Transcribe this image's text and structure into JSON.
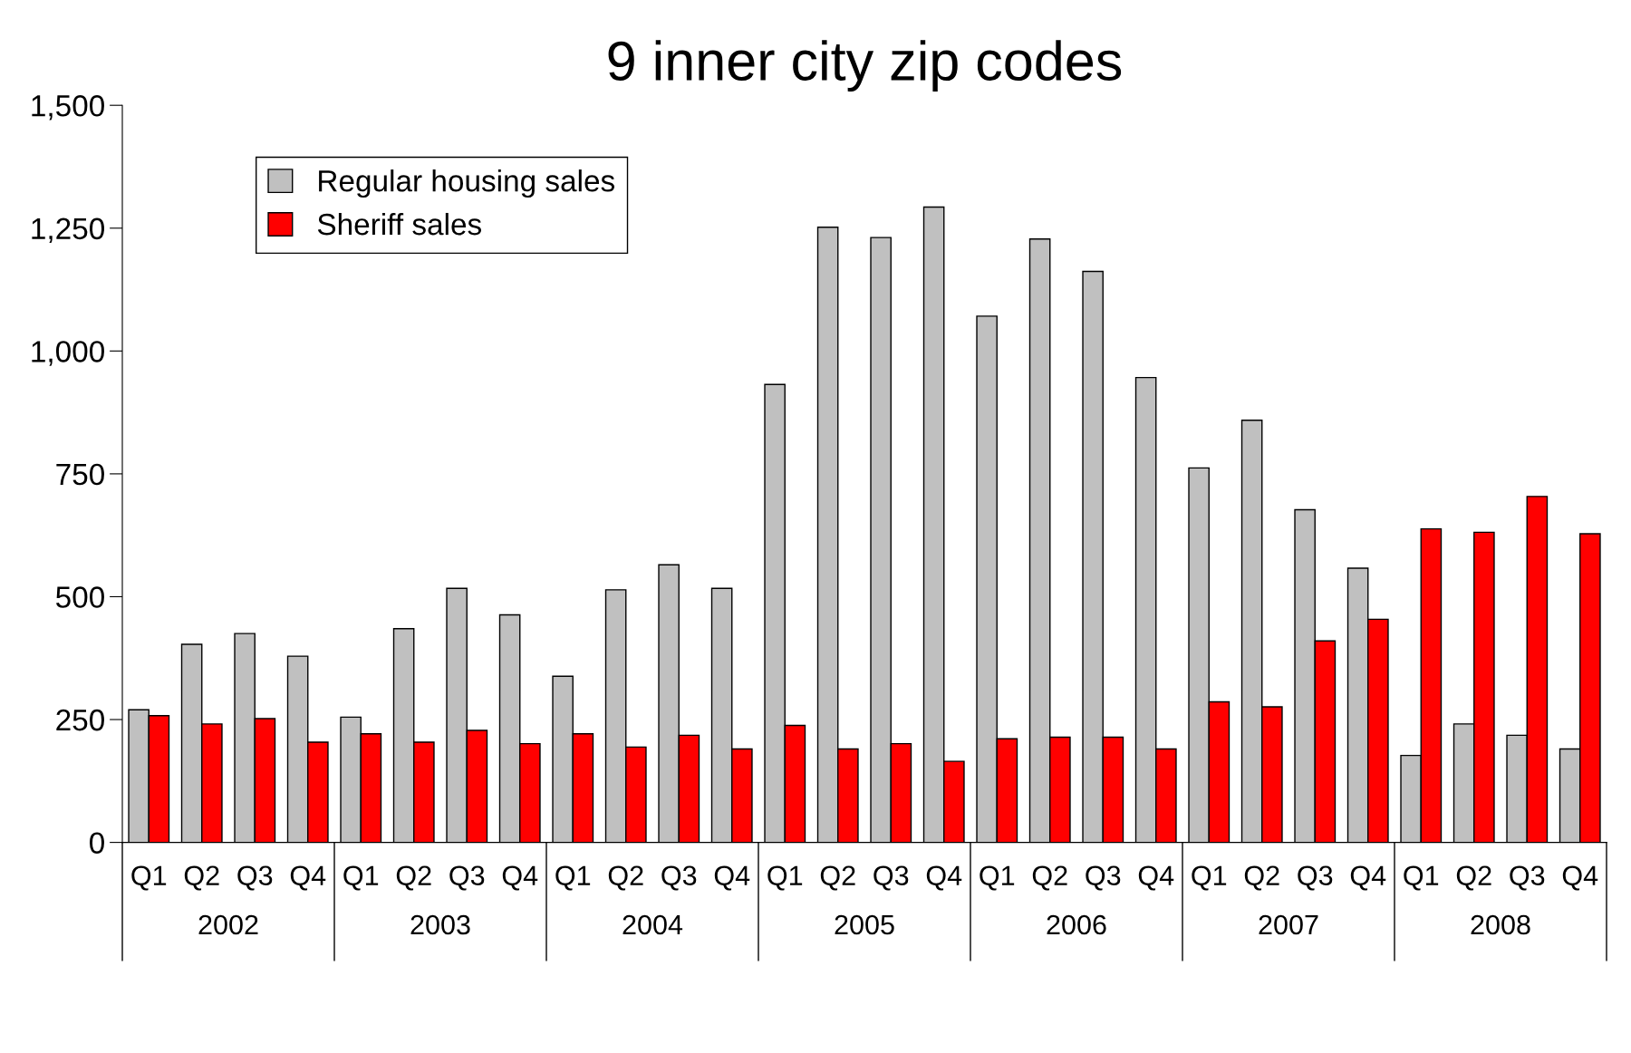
{
  "chart_data": {
    "type": "bar",
    "title": "9 inner city zip codes",
    "categories": [
      "Q1",
      "Q2",
      "Q3",
      "Q4",
      "Q1",
      "Q2",
      "Q3",
      "Q4",
      "Q1",
      "Q2",
      "Q3",
      "Q4",
      "Q1",
      "Q2",
      "Q3",
      "Q4",
      "Q1",
      "Q2",
      "Q3",
      "Q4",
      "Q1",
      "Q2",
      "Q3",
      "Q4",
      "Q1",
      "Q2",
      "Q3",
      "Q4"
    ],
    "series": [
      {
        "name": "Regular housing sales",
        "color": "#c0c0c0",
        "values": [
          270,
          403,
          425,
          379,
          255,
          435,
          517,
          463,
          338,
          514,
          565,
          517,
          932,
          1252,
          1231,
          1293,
          1071,
          1228,
          1162,
          946,
          762,
          859,
          677,
          558,
          177,
          241,
          218,
          190
        ]
      },
      {
        "name": "Sheriff sales",
        "color": "#ff0000",
        "values": [
          258,
          241,
          252,
          204,
          221,
          204,
          228,
          201,
          221,
          194,
          218,
          190,
          238,
          190,
          201,
          165,
          211,
          214,
          214,
          190,
          286,
          276,
          410,
          454,
          638,
          631,
          704,
          628
        ]
      }
    ],
    "annotations": [
      "2002",
      "2003",
      "2004",
      "2005",
      "2006",
      "2007",
      "2008"
    ],
    "ylim": [
      0,
      1500
    ],
    "yticks": [
      0,
      250,
      500,
      750,
      {
        "value": 1000,
        "label": "1,000"
      },
      {
        "value": 1250,
        "label": "1,250"
      },
      {
        "value": 1500,
        "label": "1,500"
      }
    ],
    "grid": false,
    "legend": "top left"
  }
}
